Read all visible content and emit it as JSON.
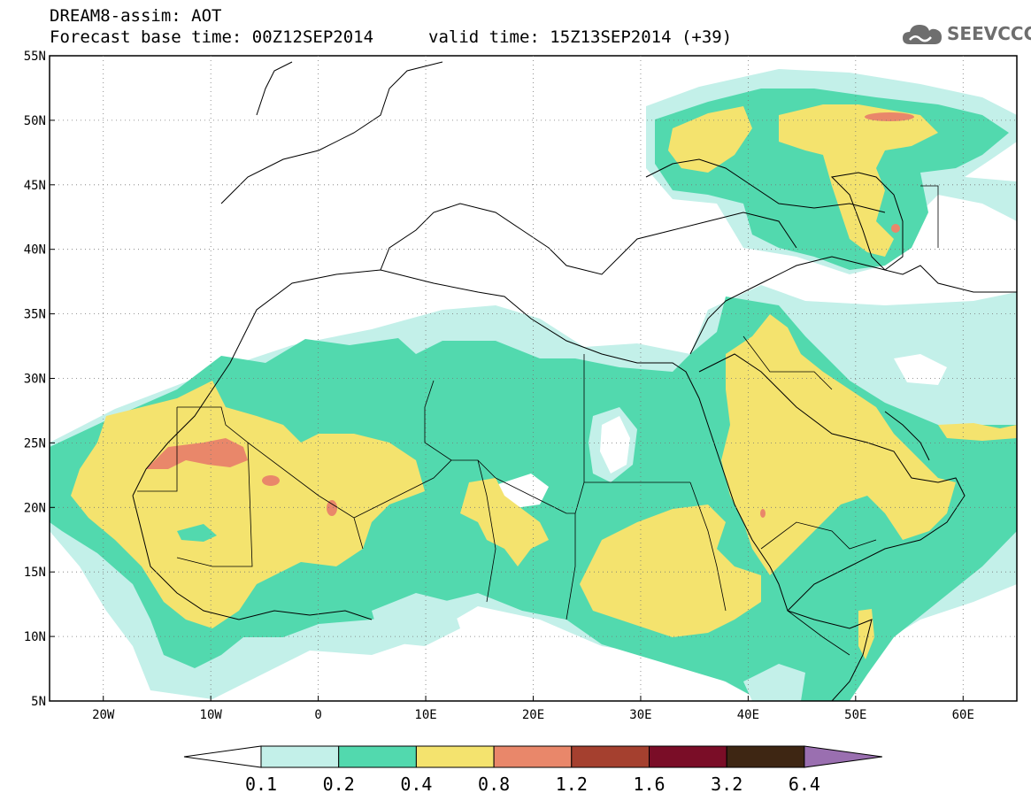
{
  "title": {
    "line1": "DREAM8-assim: AOT",
    "line2_base": "Forecast base time: 00Z12SEP2014",
    "line2_valid": "valid time: 15Z13SEP2014 (+39)"
  },
  "logo": {
    "text": "SEEVCCC",
    "icon": "cloud-icon",
    "color": "#6e6e6e"
  },
  "map": {
    "lon_range": [
      -25,
      65
    ],
    "lat_range": [
      5,
      55
    ],
    "lat_ticks": [
      "5N",
      "10N",
      "15N",
      "20N",
      "25N",
      "30N",
      "35N",
      "40N",
      "45N",
      "50N",
      "55N"
    ],
    "lon_ticks": [
      "20W",
      "10W",
      "0",
      "10E",
      "20E",
      "30E",
      "40E",
      "50E",
      "60E"
    ],
    "grid": "dotted"
  },
  "colorbar": {
    "labels": [
      "0.1",
      "0.2",
      "0.4",
      "0.8",
      "1.2",
      "1.6",
      "3.2",
      "6.4"
    ],
    "colors": [
      "#ffffff",
      "#c3f0e9",
      "#52d9ae",
      "#f4e36e",
      "#e9876a",
      "#a5402f",
      "#7a0d27",
      "#3e2613",
      "#9a6fb0"
    ]
  },
  "levels": {
    "aot_01": "#c3f0e9",
    "aot_02": "#52d9ae",
    "aot_04": "#f4e36e",
    "aot_08": "#e9876a"
  }
}
